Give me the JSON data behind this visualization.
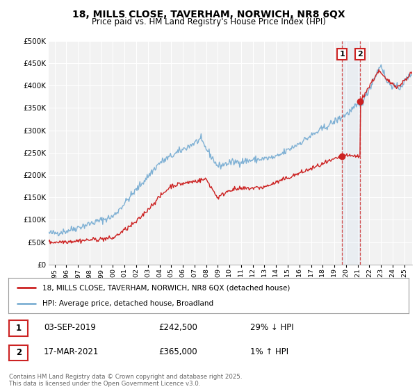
{
  "title": "18, MILLS CLOSE, TAVERHAM, NORWICH, NR8 6QX",
  "subtitle": "Price paid vs. HM Land Registry's House Price Index (HPI)",
  "bg_color": "#ffffff",
  "plot_bg_color": "#f2f2f2",
  "grid_color": "#ffffff",
  "hpi_color": "#7eb0d4",
  "price_color": "#cc2222",
  "ylim": [
    0,
    500000
  ],
  "ytick_labels": [
    "£0",
    "£50K",
    "£100K",
    "£150K",
    "£200K",
    "£250K",
    "£300K",
    "£350K",
    "£400K",
    "£450K",
    "£500K"
  ],
  "ytick_values": [
    0,
    50000,
    100000,
    150000,
    200000,
    250000,
    300000,
    350000,
    400000,
    450000,
    500000
  ],
  "xlim_start": 1994.5,
  "xlim_end": 2025.7,
  "transaction1_date": 2019.67,
  "transaction1_price": 242500,
  "transaction1_label": "1",
  "transaction2_date": 2021.21,
  "transaction2_price": 365000,
  "transaction2_label": "2",
  "legend_label_price": "18, MILLS CLOSE, TAVERHAM, NORWICH, NR8 6QX (detached house)",
  "legend_label_hpi": "HPI: Average price, detached house, Broadland",
  "table_row1": [
    "1",
    "03-SEP-2019",
    "£242,500",
    "29% ↓ HPI"
  ],
  "table_row2": [
    "2",
    "17-MAR-2021",
    "£365,000",
    "1% ↑ HPI"
  ],
  "footnote": "Contains HM Land Registry data © Crown copyright and database right 2025.\nThis data is licensed under the Open Government Licence v3.0."
}
